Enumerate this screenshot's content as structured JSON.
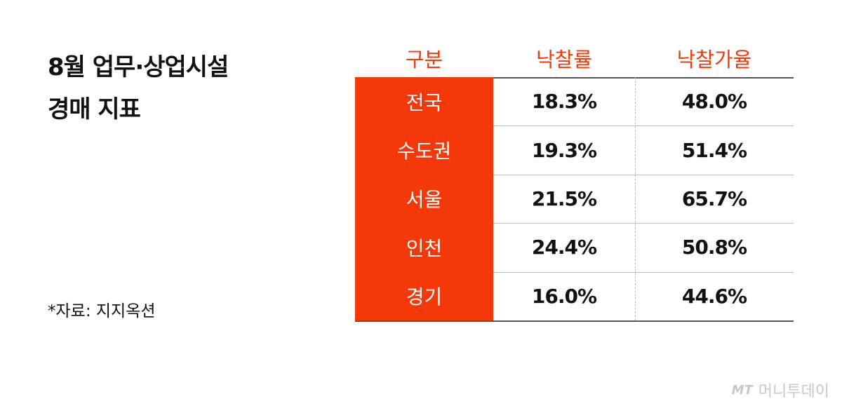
{
  "header": {
    "title_lines": [
      "8월 업무·상업시설",
      "경매 지표"
    ]
  },
  "source": "*자료: 지지옥션",
  "table": {
    "columns": [
      "구분",
      "낙찰률",
      "낙찰가율"
    ],
    "rows": [
      [
        "전국",
        "18.3%",
        "48.0%"
      ],
      [
        "수도권",
        "19.3%",
        "51.4%"
      ],
      [
        "서울",
        "21.5%",
        "65.7%"
      ],
      [
        "인천",
        "24.4%",
        "50.8%"
      ],
      [
        "경기",
        "16.0%",
        "44.6%"
      ]
    ]
  },
  "brand": {
    "logo": "MT",
    "name": "머니투데이"
  }
}
